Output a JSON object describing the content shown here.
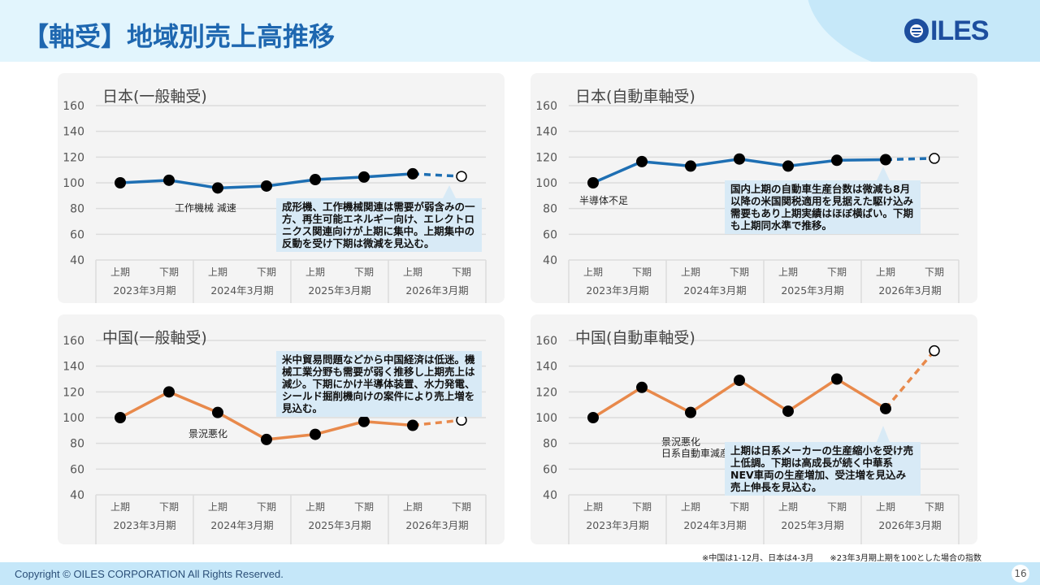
{
  "header": {
    "title": "【軸受】地域別売上高推移",
    "logo_text": "ILES",
    "logo_icon": "globe-icon"
  },
  "colors": {
    "japan_line": "#1e6fb3",
    "china_line": "#e8894b",
    "title_blue": "#1e67b0",
    "callout_bg": "#d8eaf6"
  },
  "chart_data": [
    {
      "type": "line",
      "title": "日本(一般軸受)",
      "categories": [
        "上期",
        "下期",
        "上期",
        "下期",
        "上期",
        "下期",
        "上期",
        "下期"
      ],
      "groups": [
        "2023年3月期",
        "2024年3月期",
        "2025年3月期",
        "2026年3月期"
      ],
      "series": [
        {
          "name": "日本(一般軸受)",
          "values": [
            100,
            102,
            96,
            97.5,
            102.5,
            104.5,
            107,
            105
          ],
          "forecast_from_index": 7
        }
      ],
      "ylim": [
        40,
        160
      ],
      "yticks": [
        160,
        140,
        120,
        100,
        80,
        60,
        40
      ],
      "grid": true,
      "annotation": "工作機械 減速",
      "callout": "成形機、工作機械関連は需要が弱含みの一方、再生可能エネルギー向け、エレクトロニクス関連向けが上期に集中。上期集中の反動を受け下期は微減を見込む。"
    },
    {
      "type": "line",
      "title": "日本(自動車軸受)",
      "categories": [
        "上期",
        "下期",
        "上期",
        "下期",
        "上期",
        "下期",
        "上期",
        "下期"
      ],
      "groups": [
        "2023年3月期",
        "2024年3月期",
        "2025年3月期",
        "2026年3月期"
      ],
      "series": [
        {
          "name": "日本(自動車軸受)",
          "values": [
            100,
            116.5,
            113,
            118.5,
            113,
            117.5,
            118,
            119
          ],
          "forecast_from_index": 7
        }
      ],
      "ylim": [
        40,
        160
      ],
      "yticks": [
        160,
        140,
        120,
        100,
        80,
        60,
        40
      ],
      "grid": true,
      "annotation": "半導体不足",
      "callout": "国内上期の自動車生産台数は微減も8月以降の米国関税適用を見据えた駆け込み需要もあり上期実績はほぼ横ばい。下期も上期同水準で推移。"
    },
    {
      "type": "line",
      "title": "中国(一般軸受)",
      "categories": [
        "上期",
        "下期",
        "上期",
        "下期",
        "上期",
        "下期",
        "上期",
        "下期"
      ],
      "groups": [
        "2023年3月期",
        "2024年3月期",
        "2025年3月期",
        "2026年3月期"
      ],
      "series": [
        {
          "name": "中国(一般軸受)",
          "values": [
            100,
            120,
            104,
            83,
            87,
            97,
            94,
            98
          ],
          "forecast_from_index": 7
        }
      ],
      "ylim": [
        40,
        160
      ],
      "yticks": [
        160,
        140,
        120,
        100,
        80,
        60,
        40
      ],
      "grid": true,
      "annotation": "景況悪化",
      "callout": "米中貿易問題などから中国経済は低迷。機械工業分野も需要が弱く推移し上期売上は減少。下期にかけ半導体装置、水力発電、シールド掘削機向けの案件により売上増を見込む。"
    },
    {
      "type": "line",
      "title": "中国(自動車軸受)",
      "categories": [
        "上期",
        "下期",
        "上期",
        "下期",
        "上期",
        "下期",
        "上期",
        "下期"
      ],
      "groups": [
        "2023年3月期",
        "2024年3月期",
        "2025年3月期",
        "2026年3月期"
      ],
      "series": [
        {
          "name": "中国(自動車軸受)",
          "values": [
            100,
            123.5,
            104,
            129,
            105,
            130,
            107,
            152
          ],
          "forecast_from_index": 7
        }
      ],
      "ylim": [
        40,
        160
      ],
      "yticks": [
        160,
        140,
        120,
        100,
        80,
        60,
        40
      ],
      "grid": true,
      "annotation": "景況悪化\n日系自動車減産",
      "callout": "上期は日系メーカーの生産縮小を受け売上低調。下期は高成長が続く中華系NEV車両の生産増加、受注増を見込み売上伸長を見込む。"
    }
  ],
  "footnote": "※中国は1-12月、日本は4-3月　　※23年3月期上期を100とした場合の指数",
  "footer": {
    "copyright": "Copyright © OILES CORPORATION All Rights Reserved.",
    "page_number": "16"
  }
}
